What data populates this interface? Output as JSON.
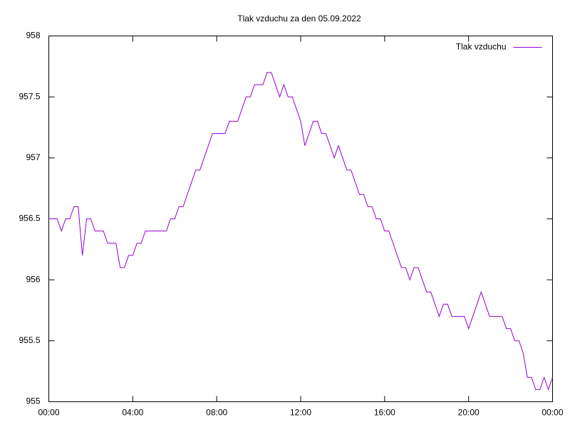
{
  "chart_data": {
    "type": "line",
    "title": "Tlak vzduchu za den 05.09.2022",
    "x": [
      0,
      0.2,
      0.4,
      0.6,
      0.8,
      1,
      1.2,
      1.4,
      1.6,
      1.8,
      2,
      2.2,
      2.4,
      2.6,
      2.8,
      3,
      3.2,
      3.4,
      3.6,
      3.8,
      4,
      4.2,
      4.4,
      4.6,
      4.8,
      5,
      5.2,
      5.4,
      5.6,
      5.8,
      6,
      6.2,
      6.4,
      6.6,
      6.8,
      7,
      7.2,
      7.4,
      7.6,
      7.8,
      8,
      8.2,
      8.4,
      8.6,
      8.8,
      9,
      9.2,
      9.4,
      9.6,
      9.8,
      10,
      10.2,
      10.4,
      10.6,
      10.8,
      11,
      11.2,
      11.4,
      11.6,
      11.8,
      12,
      12.2,
      12.4,
      12.6,
      12.8,
      13,
      13.2,
      13.4,
      13.6,
      13.8,
      14,
      14.2,
      14.4,
      14.6,
      14.8,
      15,
      15.2,
      15.4,
      15.6,
      15.8,
      16,
      16.2,
      16.4,
      16.6,
      16.8,
      17,
      17.2,
      17.4,
      17.6,
      17.8,
      18,
      18.2,
      18.4,
      18.6,
      18.8,
      19,
      19.2,
      19.4,
      19.6,
      19.8,
      20,
      20.2,
      20.4,
      20.6,
      20.8,
      21,
      21.2,
      21.4,
      21.6,
      21.8,
      22,
      22.2,
      22.4,
      22.6,
      22.8,
      23,
      23.2,
      23.4,
      23.6,
      23.8,
      24
    ],
    "series": [
      {
        "name": "Tlak vzduchu",
        "color": "#9400d3",
        "values": [
          956.5,
          956.5,
          956.5,
          956.4,
          956.5,
          956.5,
          956.6,
          956.6,
          956.2,
          956.5,
          956.5,
          956.4,
          956.4,
          956.4,
          956.3,
          956.3,
          956.3,
          956.1,
          956.1,
          956.2,
          956.2,
          956.3,
          956.3,
          956.4,
          956.4,
          956.4,
          956.4,
          956.4,
          956.4,
          956.5,
          956.5,
          956.6,
          956.6,
          956.7,
          956.8,
          956.9,
          956.9,
          957.0,
          957.1,
          957.2,
          957.2,
          957.2,
          957.2,
          957.3,
          957.3,
          957.3,
          957.4,
          957.5,
          957.5,
          957.6,
          957.6,
          957.6,
          957.7,
          957.7,
          957.6,
          957.5,
          957.6,
          957.5,
          957.5,
          957.4,
          957.3,
          957.1,
          957.2,
          957.3,
          957.3,
          957.2,
          957.2,
          957.1,
          957.0,
          957.1,
          957.0,
          956.9,
          956.9,
          956.8,
          956.7,
          956.7,
          956.6,
          956.6,
          956.5,
          956.5,
          956.4,
          956.4,
          956.3,
          956.2,
          956.1,
          956.1,
          956.0,
          956.1,
          956.1,
          956.0,
          955.9,
          955.9,
          955.8,
          955.7,
          955.8,
          955.8,
          955.7,
          955.7,
          955.7,
          955.7,
          955.6,
          955.7,
          955.8,
          955.9,
          955.8,
          955.7,
          955.7,
          955.7,
          955.7,
          955.6,
          955.6,
          955.5,
          955.5,
          955.4,
          955.2,
          955.2,
          955.1,
          955.1,
          955.2,
          955.1,
          955.2
        ]
      }
    ],
    "xlim": [
      0,
      24
    ],
    "xticks": [
      {
        "value": 0,
        "label": "00:00"
      },
      {
        "value": 4,
        "label": "04:00"
      },
      {
        "value": 8,
        "label": "08:00"
      },
      {
        "value": 12,
        "label": "12:00"
      },
      {
        "value": 16,
        "label": "16:00"
      },
      {
        "value": 20,
        "label": "20:00"
      },
      {
        "value": 24,
        "label": "00:00"
      }
    ],
    "ylim": [
      955,
      958
    ],
    "yticks": [
      955,
      955.5,
      956,
      956.5,
      957,
      957.5,
      958
    ],
    "grid": false,
    "legend": "top-right"
  }
}
